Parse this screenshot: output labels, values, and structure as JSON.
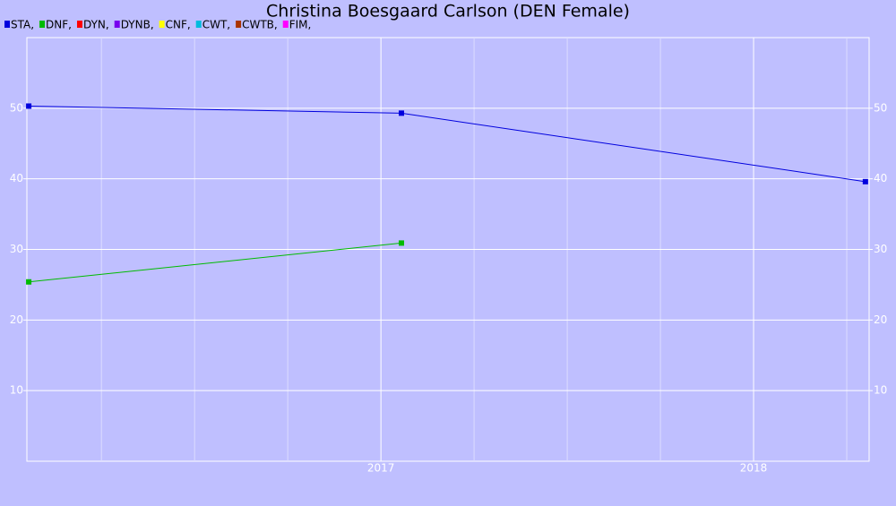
{
  "chart_data": {
    "type": "line",
    "title": "Christina Boesgaard Carlson (DEN Female)",
    "x": [
      2016.055,
      2017.055,
      2018.3
    ],
    "series": [
      {
        "name": "STA,",
        "color": "#0000dd",
        "values": [
          50.3,
          49.3,
          39.6
        ]
      },
      {
        "name": "DNF,",
        "color": "#00bb00",
        "values": [
          25.4,
          30.9,
          null
        ]
      },
      {
        "name": "DYN,",
        "color": "#ff0000",
        "values": [
          null,
          null,
          null
        ]
      },
      {
        "name": "DYNB,",
        "color": "#7700ee",
        "values": [
          null,
          null,
          null
        ]
      },
      {
        "name": "CNF,",
        "color": "#ffff00",
        "values": [
          null,
          null,
          null
        ]
      },
      {
        "name": "CWT,",
        "color": "#00bbdd",
        "values": [
          null,
          null,
          null
        ]
      },
      {
        "name": "CWTB,",
        "color": "#aa3300",
        "values": [
          null,
          null,
          null
        ]
      },
      {
        "name": "FIM,",
        "color": "#ff00ff",
        "values": [
          null,
          null,
          null
        ]
      }
    ],
    "xlim": [
      2016.05,
      2018.31
    ],
    "xticks": [
      2017,
      2018
    ],
    "xminorticks": [
      2016.25,
      2016.5,
      2016.75,
      2017.25,
      2017.5,
      2017.75,
      2018.25
    ],
    "ylim": [
      0,
      60
    ],
    "yticks": [
      10,
      20,
      30,
      40,
      50
    ],
    "grid": true
  }
}
